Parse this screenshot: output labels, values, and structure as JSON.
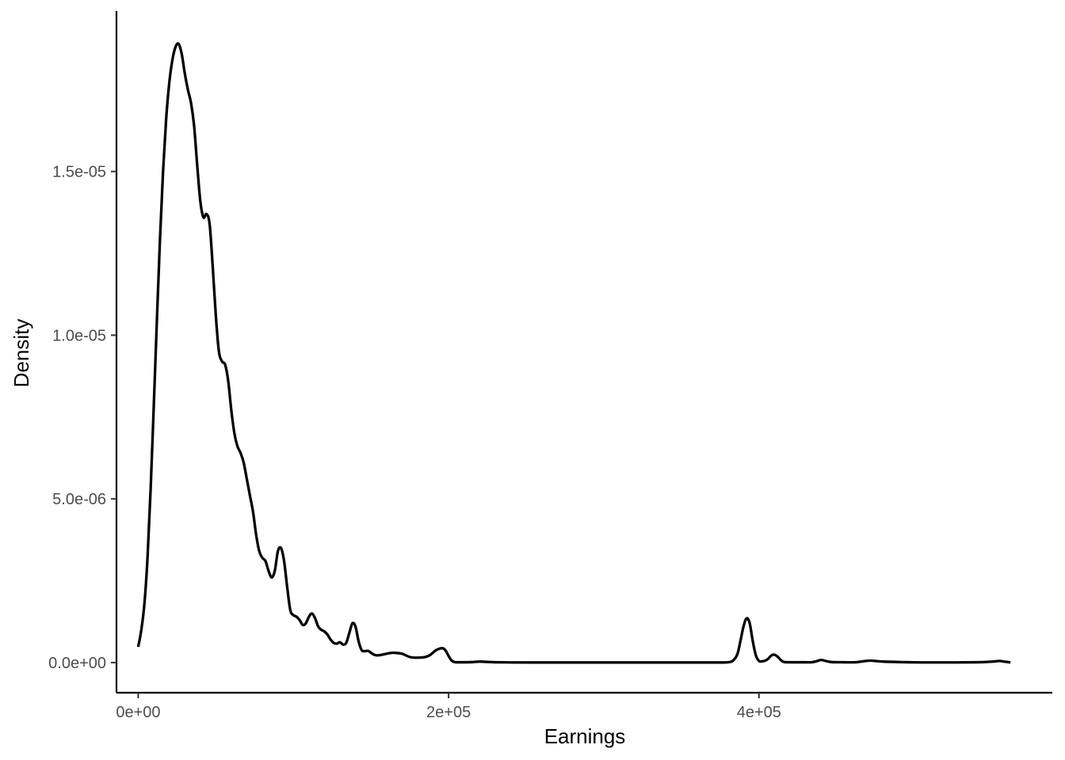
{
  "chart_data": {
    "type": "line",
    "title": "",
    "xlabel": "Earnings",
    "ylabel": "Density",
    "xlim": [
      -14000,
      589000
    ],
    "ylim": [
      -9.2e-07,
      1.99e-05
    ],
    "grid": false,
    "legend": "none",
    "x_ticks": [
      {
        "value": 0,
        "label": "0e+00"
      },
      {
        "value": 200000,
        "label": "2e+05"
      },
      {
        "value": 400000,
        "label": "4e+05"
      }
    ],
    "y_ticks": [
      {
        "value": 0,
        "label": "0.0e+00"
      },
      {
        "value": 5e-06,
        "label": "5.0e-06"
      },
      {
        "value": 1e-05,
        "label": "1.0e-05"
      },
      {
        "value": 1.5e-05,
        "label": "1.5e-05"
      }
    ],
    "series": [
      {
        "color": "#000000",
        "x": [
          0,
          2000,
          4000,
          6000,
          8000,
          10000,
          12000,
          14000,
          16000,
          18000,
          20000,
          22000,
          24000,
          26000,
          28000,
          30000,
          32000,
          34000,
          36000,
          38000,
          40000,
          42000,
          44000,
          46000,
          48000,
          50000,
          52000,
          54000,
          56000,
          58000,
          60000,
          62000,
          64000,
          66000,
          68000,
          70000,
          72000,
          74000,
          76000,
          78000,
          80000,
          82000,
          84000,
          86000,
          88000,
          90000,
          92000,
          94000,
          96000,
          98000,
          100000,
          102000,
          104000,
          106000,
          108000,
          110000,
          112000,
          114000,
          116000,
          118000,
          120000,
          122000,
          124000,
          126000,
          128000,
          130000,
          132000,
          134000,
          136000,
          138000,
          140000,
          142000,
          144000,
          146000,
          148000,
          150000,
          152000,
          154000,
          156000,
          158000,
          160000,
          162000,
          165000,
          170000,
          175000,
          180000,
          185000,
          188000,
          192000,
          196000,
          198000,
          200000,
          202000,
          204000,
          206000,
          210000,
          215000,
          220000,
          225000,
          230000,
          240000,
          260000,
          280000,
          300000,
          320000,
          340000,
          360000,
          375000,
          380000,
          383000,
          386000,
          388000,
          390000,
          392000,
          394000,
          396000,
          398000,
          400000,
          402000,
          404000,
          406000,
          408000,
          410000,
          412000,
          414000,
          416000,
          420000,
          430000,
          434000,
          437000,
          440000,
          443000,
          447000,
          455000,
          462000,
          467000,
          472000,
          480000,
          500000,
          520000,
          540000,
          550000,
          555000,
          558000,
          562000
        ],
        "y": [
          4.8e-07,
          1e-06,
          1.8e-06,
          3.2e-06,
          5.3e-06,
          7.8e-06,
          1.04e-05,
          1.29e-05,
          1.5e-05,
          1.66e-05,
          1.77e-05,
          1.84e-05,
          1.88e-05,
          1.89e-05,
          1.86e-05,
          1.8e-05,
          1.75e-05,
          1.71e-05,
          1.64e-05,
          1.52e-05,
          1.41e-05,
          1.36e-05,
          1.37e-05,
          1.34e-05,
          1.21e-05,
          1.06e-05,
          9.5e-06,
          9.2e-06,
          9.1e-06,
          8.6e-06,
          7.7e-06,
          7e-06,
          6.6e-06,
          6.4e-06,
          6.1e-06,
          5.6e-06,
          5.1e-06,
          4.6e-06,
          3.9e-06,
          3.4e-06,
          3.2e-06,
          3.1e-06,
          2.8e-06,
          2.6e-06,
          2.8e-06,
          3.4e-06,
          3.5e-06,
          3.1e-06,
          2.3e-06,
          1.6e-06,
          1.45e-06,
          1.4e-06,
          1.3e-06,
          1.15e-06,
          1.2e-06,
          1.4e-06,
          1.5e-06,
          1.35e-06,
          1.1e-06,
          1e-06,
          9.5e-07,
          8.5e-07,
          7e-07,
          6e-07,
          5.8e-07,
          6.2e-07,
          5.5e-07,
          6e-07,
          9e-07,
          1.2e-06,
          1.1e-06,
          6.5e-07,
          3.8e-07,
          3.5e-07,
          3.6e-07,
          3e-07,
          2.4e-07,
          2.2e-07,
          2.3e-07,
          2.5e-07,
          2.7e-07,
          2.9e-07,
          3e-07,
          2.7e-07,
          1.7e-07,
          1.5e-07,
          1.7e-07,
          2.3e-07,
          3.8e-07,
          4.4e-07,
          3.7e-07,
          2e-07,
          6e-08,
          1.5e-08,
          1e-08,
          1e-08,
          1.5e-08,
          3e-08,
          2e-08,
          1e-08,
          5e-09,
          3e-09,
          3e-09,
          3e-09,
          3e-09,
          3e-09,
          3e-09,
          3e-09,
          1e-08,
          5e-08,
          2.5e-07,
          6.5e-07,
          1.1e-06,
          1.35e-06,
          1.2e-06,
          6.5e-07,
          2.2e-07,
          5e-08,
          4e-08,
          6e-08,
          1.2e-07,
          2.2e-07,
          2.4e-07,
          1.8e-07,
          8e-08,
          2e-08,
          1e-08,
          1e-08,
          1e-08,
          4e-08,
          8e-08,
          5e-08,
          1.5e-08,
          1e-08,
          1e-08,
          4e-08,
          6e-08,
          3e-08,
          8e-09,
          5e-09,
          1e-08,
          3e-08,
          5e-08,
          3e-08,
          5e-09
        ]
      }
    ]
  }
}
